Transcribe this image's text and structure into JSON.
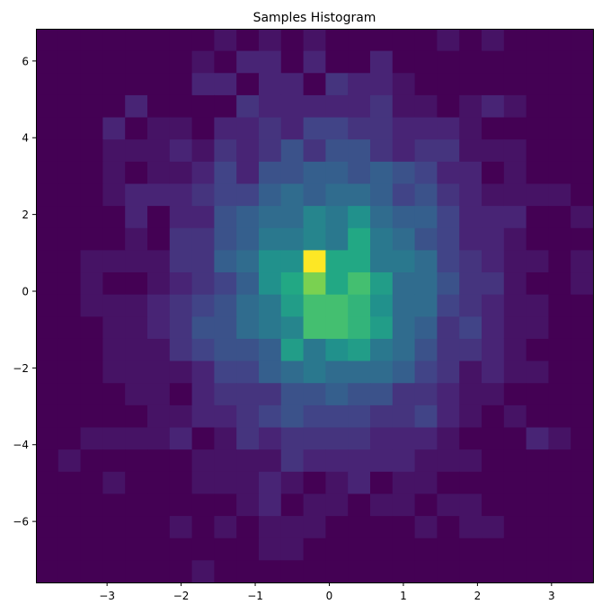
{
  "chart_data": {
    "type": "heatmap",
    "title": "Samples Histogram",
    "xlabel": "",
    "ylabel": "",
    "xlim": [
      -3.96,
      3.56
    ],
    "ylim": [
      -7.59,
      6.84
    ],
    "xticks": [
      -3,
      -2,
      -1,
      0,
      1,
      2,
      3
    ],
    "yticks": [
      -6,
      -4,
      -2,
      0,
      2,
      4,
      6
    ],
    "xtick_labels": [
      "−3",
      "−2",
      "−1",
      "0",
      "1",
      "2",
      "3"
    ],
    "ytick_labels": [
      "−6",
      "−4",
      "−2",
      "0",
      "2",
      "4",
      "6"
    ],
    "bins": [
      25,
      25
    ],
    "colormap": "viridis",
    "grid": false,
    "rows_top_to_bottom": [
      [
        0,
        0,
        0,
        0,
        0,
        0,
        0,
        0,
        1,
        0,
        1,
        0,
        1,
        0,
        0,
        0,
        0,
        0,
        1,
        0,
        1,
        0,
        0,
        0,
        0
      ],
      [
        0,
        0,
        0,
        0,
        0,
        0,
        0,
        1,
        0,
        2,
        2,
        0,
        2,
        0,
        0,
        2,
        0,
        0,
        0,
        0,
        0,
        0,
        0,
        0,
        0
      ],
      [
        0,
        0,
        0,
        0,
        0,
        0,
        0,
        2,
        2,
        0,
        2,
        2,
        0,
        3,
        2,
        2,
        1,
        0,
        0,
        0,
        0,
        0,
        0,
        0,
        0
      ],
      [
        0,
        0,
        0,
        0,
        2,
        0,
        0,
        0,
        0,
        3,
        2,
        2,
        2,
        2,
        2,
        3,
        1,
        1,
        0,
        1,
        2,
        1,
        0,
        0,
        0
      ],
      [
        0,
        0,
        0,
        2,
        0,
        1,
        1,
        0,
        2,
        2,
        3,
        2,
        4,
        4,
        3,
        3,
        2,
        2,
        2,
        1,
        0,
        0,
        0,
        0,
        0
      ],
      [
        0,
        0,
        0,
        1,
        1,
        1,
        2,
        1,
        3,
        2,
        3,
        5,
        3,
        5,
        5,
        3,
        2,
        3,
        3,
        1,
        1,
        1,
        0,
        0,
        0
      ],
      [
        0,
        0,
        0,
        1,
        0,
        1,
        1,
        2,
        4,
        2,
        5,
        5,
        6,
        6,
        5,
        6,
        5,
        4,
        2,
        2,
        0,
        1,
        0,
        0,
        0
      ],
      [
        0,
        0,
        0,
        1,
        2,
        2,
        2,
        3,
        4,
        4,
        6,
        7,
        6,
        7,
        7,
        6,
        4,
        5,
        3,
        2,
        1,
        1,
        1,
        1,
        0
      ],
      [
        0,
        0,
        0,
        0,
        2,
        0,
        2,
        2,
        5,
        6,
        7,
        7,
        9,
        8,
        10,
        7,
        6,
        6,
        4,
        2,
        2,
        2,
        0,
        0,
        1
      ],
      [
        0,
        0,
        0,
        0,
        1,
        0,
        3,
        3,
        5,
        6,
        8,
        8,
        9,
        8,
        12,
        8,
        7,
        5,
        4,
        2,
        2,
        1,
        0,
        0,
        0
      ],
      [
        0,
        0,
        1,
        1,
        1,
        1,
        3,
        3,
        6,
        7,
        10,
        10,
        20,
        12,
        12,
        8,
        8,
        7,
        4,
        3,
        2,
        1,
        1,
        0,
        1
      ],
      [
        0,
        0,
        1,
        0,
        0,
        1,
        2,
        3,
        4,
        6,
        10,
        12,
        16,
        12,
        14,
        11,
        7,
        7,
        5,
        3,
        3,
        1,
        0,
        0,
        1
      ],
      [
        0,
        0,
        1,
        1,
        1,
        2,
        3,
        4,
        5,
        7,
        8,
        11,
        14,
        14,
        13,
        10,
        7,
        7,
        4,
        3,
        2,
        1,
        1,
        0,
        0
      ],
      [
        0,
        0,
        0,
        1,
        1,
        2,
        3,
        5,
        5,
        7,
        8,
        9,
        14,
        14,
        13,
        11,
        7,
        6,
        3,
        4,
        2,
        1,
        1,
        0,
        0
      ],
      [
        0,
        0,
        0,
        1,
        1,
        1,
        3,
        4,
        5,
        5,
        6,
        11,
        8,
        10,
        11,
        8,
        7,
        5,
        3,
        3,
        2,
        1,
        0,
        0,
        0
      ],
      [
        0,
        0,
        0,
        1,
        1,
        1,
        1,
        2,
        4,
        4,
        6,
        7,
        8,
        7,
        7,
        7,
        6,
        4,
        3,
        1,
        2,
        1,
        1,
        0,
        0
      ],
      [
        0,
        0,
        0,
        0,
        1,
        1,
        0,
        2,
        3,
        3,
        3,
        5,
        5,
        6,
        5,
        5,
        3,
        3,
        2,
        1,
        1,
        0,
        0,
        0,
        0
      ],
      [
        0,
        0,
        0,
        0,
        0,
        1,
        1,
        2,
        2,
        3,
        4,
        5,
        4,
        4,
        4,
        3,
        3,
        4,
        2,
        1,
        0,
        1,
        0,
        0,
        0
      ],
      [
        0,
        0,
        1,
        1,
        1,
        1,
        2,
        0,
        1,
        3,
        2,
        3,
        3,
        3,
        3,
        2,
        2,
        2,
        1,
        0,
        0,
        0,
        2,
        1,
        0
      ],
      [
        0,
        1,
        0,
        0,
        0,
        0,
        0,
        1,
        1,
        1,
        1,
        3,
        2,
        2,
        2,
        2,
        2,
        1,
        1,
        1,
        0,
        0,
        0,
        0,
        0
      ],
      [
        0,
        0,
        0,
        1,
        0,
        0,
        0,
        1,
        1,
        1,
        2,
        1,
        0,
        1,
        2,
        0,
        1,
        1,
        0,
        0,
        0,
        0,
        0,
        0,
        0
      ],
      [
        0,
        0,
        0,
        0,
        0,
        0,
        0,
        0,
        0,
        1,
        2,
        0,
        1,
        1,
        0,
        1,
        1,
        0,
        1,
        1,
        0,
        0,
        0,
        0,
        0
      ],
      [
        0,
        0,
        0,
        0,
        0,
        0,
        1,
        0,
        1,
        0,
        1,
        1,
        1,
        0,
        0,
        0,
        0,
        1,
        0,
        1,
        1,
        0,
        0,
        0,
        0
      ],
      [
        0,
        0,
        0,
        0,
        0,
        0,
        0,
        0,
        0,
        0,
        1,
        1,
        0,
        0,
        0,
        0,
        0,
        0,
        0,
        0,
        0,
        0,
        0,
        0,
        0
      ],
      [
        0,
        0,
        0,
        0,
        0,
        0,
        0,
        1,
        0,
        0,
        0,
        0,
        0,
        0,
        0,
        0,
        0,
        0,
        0,
        0,
        0,
        0,
        0,
        0,
        0
      ]
    ]
  }
}
